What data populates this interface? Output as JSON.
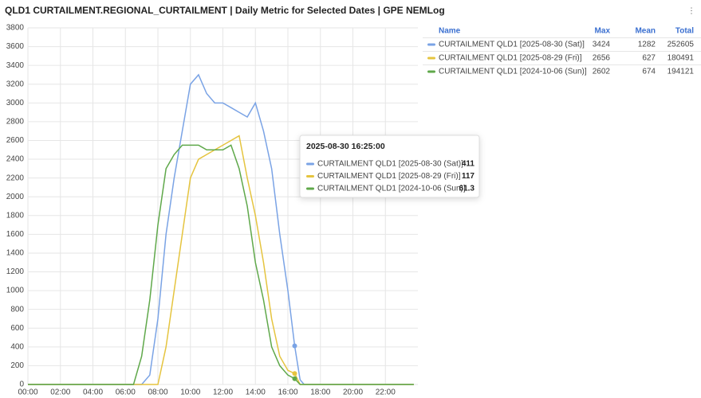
{
  "chart_data": {
    "type": "line",
    "title": "QLD1 CURTAILMENT.REGIONAL_CURTAILMENT | Daily Metric for Selected Dates | GPE NEMLog",
    "x": [
      0,
      6.5,
      7,
      7.5,
      8,
      8.5,
      9,
      9.5,
      10,
      10.5,
      11,
      11.5,
      12,
      12.5,
      13,
      13.5,
      14,
      14.5,
      15,
      15.5,
      16,
      16.4167,
      16.75,
      17,
      23.75
    ],
    "xlim": [
      0,
      24
    ],
    "xticks": [
      {
        "value": 0,
        "label": "00:00"
      },
      {
        "value": 2,
        "label": "02:00"
      },
      {
        "value": 4,
        "label": "04:00"
      },
      {
        "value": 6,
        "label": "06:00"
      },
      {
        "value": 8,
        "label": "08:00"
      },
      {
        "value": 10,
        "label": "10:00"
      },
      {
        "value": 12,
        "label": "12:00"
      },
      {
        "value": 14,
        "label": "14:00"
      },
      {
        "value": 16,
        "label": "16:00"
      },
      {
        "value": 18,
        "label": "18:00"
      },
      {
        "value": 20,
        "label": "20:00"
      },
      {
        "value": 22,
        "label": "22:00"
      }
    ],
    "ylim": [
      0,
      3800
    ],
    "yticks": [
      0,
      200,
      400,
      600,
      800,
      1000,
      1200,
      1400,
      1600,
      1800,
      2000,
      2200,
      2400,
      2600,
      2800,
      3000,
      3200,
      3400,
      3600,
      3800
    ],
    "grid": true,
    "legend_columns": [
      "Name",
      "Max",
      "Mean",
      "Total"
    ],
    "series": [
      {
        "name": "CURTAILMENT QLD1 [2025-08-30 (Sat)]",
        "color": "#7aa3e5",
        "max": 3424,
        "mean": 1282,
        "total": 252605,
        "values": [
          0,
          0,
          0,
          100,
          700,
          1600,
          2200,
          2700,
          3200,
          3300,
          3100,
          3000,
          3000,
          2950,
          2900,
          2850,
          3000,
          2700,
          2300,
          1600,
          1000,
          411,
          50,
          0,
          0
        ]
      },
      {
        "name": "CURTAILMENT QLD1 [2025-08-29 (Fri)]",
        "color": "#e5c43f",
        "max": 2656,
        "mean": 627,
        "total": 180491,
        "values": [
          0,
          0,
          0,
          0,
          0,
          400,
          1000,
          1600,
          2200,
          2400,
          2450,
          2500,
          2550,
          2600,
          2650,
          2200,
          1800,
          1300,
          700,
          300,
          150,
          117,
          0,
          0,
          0
        ]
      },
      {
        "name": "CURTAILMENT QLD1 [2024-10-06 (Sun)]",
        "color": "#5fa84a",
        "max": 2602,
        "mean": 674,
        "total": 194121,
        "values": [
          0,
          0,
          300,
          900,
          1700,
          2300,
          2450,
          2550,
          2550,
          2550,
          2500,
          2500,
          2500,
          2550,
          2300,
          1900,
          1300,
          900,
          400,
          200,
          100,
          61.3,
          0,
          0,
          0
        ]
      }
    ],
    "tooltip_index": 21,
    "tooltip_time": "2025-08-30 16:25:00"
  }
}
